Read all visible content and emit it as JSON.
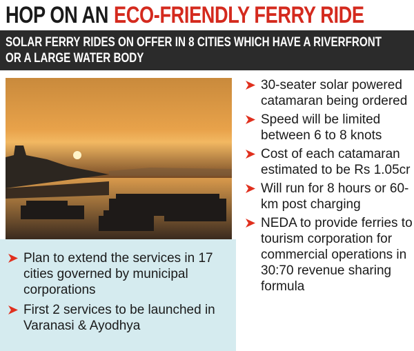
{
  "header": {
    "title_plain": "HOP ON AN",
    "title_highlight": "ECO-FRIENDLY FERRY RIDE"
  },
  "subtitle": "SOLAR FERRY RIDES ON OFFER IN 8 CITIES WHICH HAVE A RIVERFRONT OR A LARGE WATER BODY",
  "left_points": [
    "Plan to extend the services in 17 cities governed by municipal corporations",
    "First 2 services to be launched in Varanasi & Ayodhya"
  ],
  "right_points": [
    "30-seater solar powered catamaran being ordered",
    "Speed will be limited between 6 to 8 knots",
    "Cost of each catamaran estimated to be Rs 1.05cr",
    "Will run for 8 hours or 60-km post charging",
    "NEDA to provide ferries to tourism corporation for commercial operations in 30:70 revenue sharing formula"
  ]
}
